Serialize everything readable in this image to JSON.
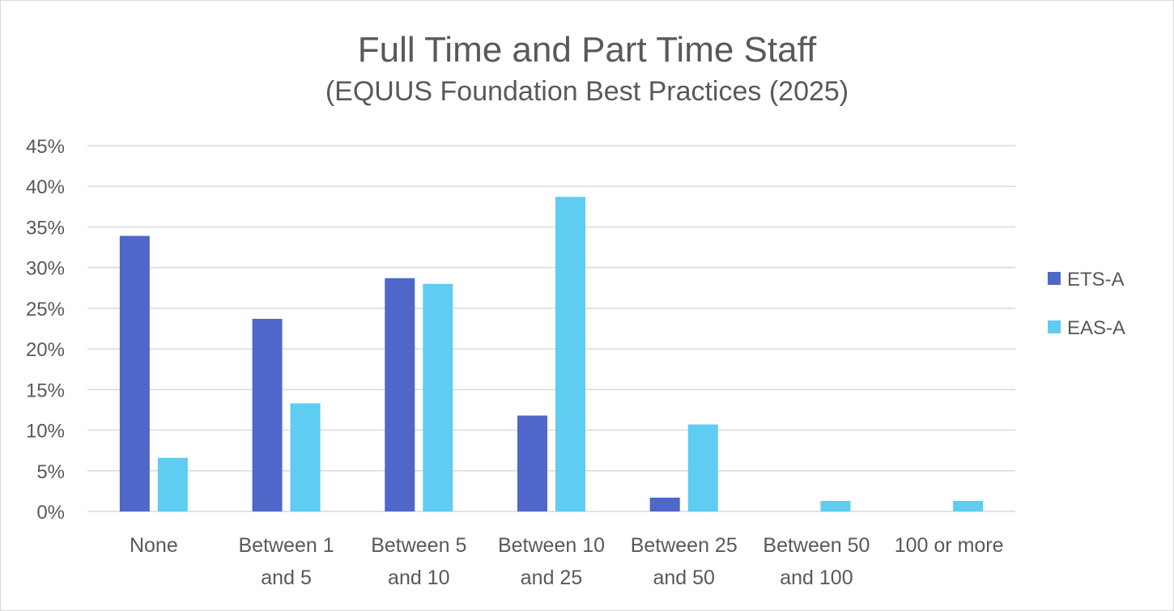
{
  "chart_data": {
    "type": "bar",
    "title": "Full Time and Part Time Staff",
    "subtitle": "(EQUUS Foundation Best Practices (2025)",
    "categories": [
      [
        "None"
      ],
      [
        "Between 1",
        "and 5"
      ],
      [
        "Between 5",
        "and 10"
      ],
      [
        "Between 10",
        "and 25"
      ],
      [
        "Between 25",
        "and 50"
      ],
      [
        "Between 50",
        "and 100"
      ],
      [
        "100 or more"
      ]
    ],
    "series": [
      {
        "name": "ETS-A",
        "color": "#4F67C9",
        "values": [
          0.339,
          0.237,
          0.287,
          0.118,
          0.017,
          0.0,
          0.0
        ]
      },
      {
        "name": "EAS-A",
        "color": "#5FCCF2",
        "values": [
          0.066,
          0.133,
          0.28,
          0.387,
          0.107,
          0.013,
          0.013
        ]
      }
    ],
    "ylim": [
      0,
      0.45
    ],
    "yticks": [
      "0%",
      "5%",
      "10%",
      "15%",
      "20%",
      "25%",
      "30%",
      "35%",
      "40%",
      "45%"
    ],
    "grid": true,
    "legend_position": "right"
  }
}
